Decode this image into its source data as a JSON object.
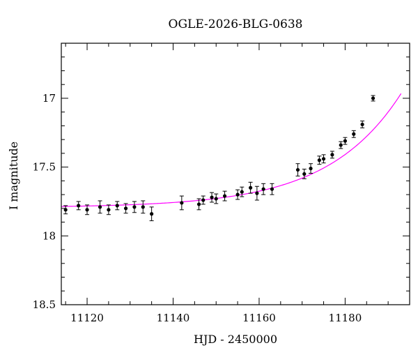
{
  "chart_data": {
    "type": "scatter",
    "title": "OGLE-2026-BLG-0638",
    "xlabel": "HJD - 2450000",
    "ylabel": "I magnitude",
    "xlim": [
      11114,
      11195
    ],
    "ylim": [
      16.6,
      18.5
    ],
    "y_inverted": true,
    "x_ticks": [
      11120,
      11140,
      11160,
      11180
    ],
    "x_tick_labels": [
      "11120",
      "11140",
      "11160",
      "11180"
    ],
    "y_ticks": [
      17,
      17.5,
      18,
      18.5
    ],
    "y_tick_labels": [
      "17",
      "17.5",
      "18",
      "18.5"
    ],
    "grid": false,
    "colors": {
      "model": "#ff00ff",
      "points": "#000000"
    },
    "series": [
      {
        "type": "errorbar",
        "points": [
          {
            "x": 11115,
            "y": 17.81,
            "err": 0.03
          },
          {
            "x": 11118,
            "y": 17.78,
            "err": 0.03
          },
          {
            "x": 11120,
            "y": 17.81,
            "err": 0.035
          },
          {
            "x": 11123,
            "y": 17.79,
            "err": 0.045
          },
          {
            "x": 11125,
            "y": 17.81,
            "err": 0.035
          },
          {
            "x": 11127,
            "y": 17.78,
            "err": 0.03
          },
          {
            "x": 11129,
            "y": 17.8,
            "err": 0.035
          },
          {
            "x": 11131,
            "y": 17.79,
            "err": 0.04
          },
          {
            "x": 11133,
            "y": 17.79,
            "err": 0.045
          },
          {
            "x": 11135,
            "y": 17.84,
            "err": 0.05
          },
          {
            "x": 11142,
            "y": 17.76,
            "err": 0.05
          },
          {
            "x": 11146,
            "y": 17.77,
            "err": 0.04
          },
          {
            "x": 11147,
            "y": 17.74,
            "err": 0.03
          },
          {
            "x": 11149,
            "y": 17.72,
            "err": 0.035
          },
          {
            "x": 11150,
            "y": 17.73,
            "err": 0.035
          },
          {
            "x": 11152,
            "y": 17.71,
            "err": 0.035
          },
          {
            "x": 11155,
            "y": 17.7,
            "err": 0.035
          },
          {
            "x": 11156,
            "y": 17.68,
            "err": 0.035
          },
          {
            "x": 11158,
            "y": 17.65,
            "err": 0.04
          },
          {
            "x": 11159.5,
            "y": 17.69,
            "err": 0.05
          },
          {
            "x": 11161,
            "y": 17.66,
            "err": 0.04
          },
          {
            "x": 11163,
            "y": 17.66,
            "err": 0.04
          },
          {
            "x": 11169,
            "y": 17.52,
            "err": 0.045
          },
          {
            "x": 11170.5,
            "y": 17.55,
            "err": 0.035
          },
          {
            "x": 11172,
            "y": 17.51,
            "err": 0.035
          },
          {
            "x": 11174,
            "y": 17.45,
            "err": 0.03
          },
          {
            "x": 11175,
            "y": 17.44,
            "err": 0.03
          },
          {
            "x": 11177,
            "y": 17.41,
            "err": 0.025
          },
          {
            "x": 11179,
            "y": 17.34,
            "err": 0.025
          },
          {
            "x": 11180,
            "y": 17.31,
            "err": 0.025
          },
          {
            "x": 11182,
            "y": 17.26,
            "err": 0.025
          },
          {
            "x": 11184,
            "y": 17.19,
            "err": 0.025
          },
          {
            "x": 11186.5,
            "y": 17.0,
            "err": 0.02
          }
        ]
      },
      {
        "type": "line",
        "model": {
          "baseline": 17.794,
          "A": 0.07,
          "t0": 11151,
          "tau": 17
        }
      }
    ]
  }
}
